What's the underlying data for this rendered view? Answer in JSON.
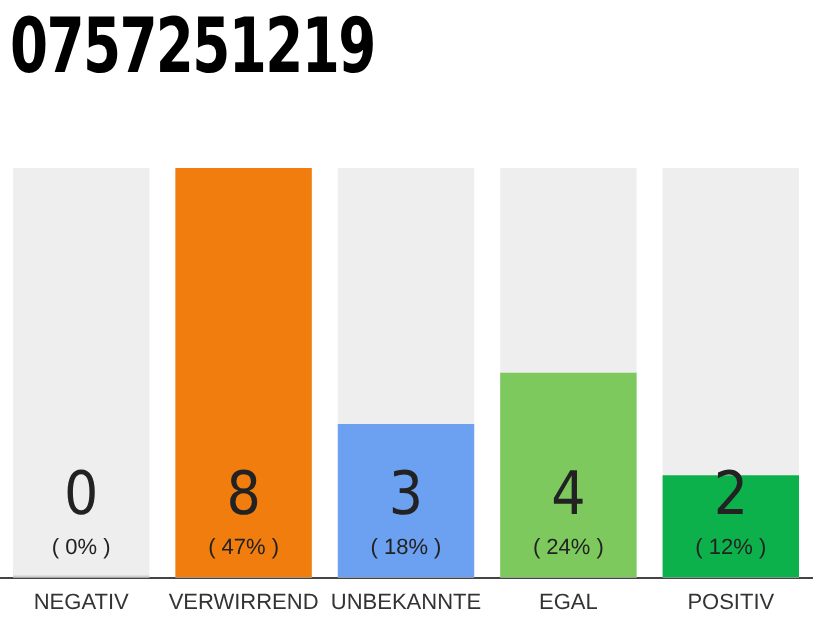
{
  "chart_data": {
    "type": "bar",
    "title": "0757251219",
    "categories": [
      "NEGATIV",
      "VERWIRREND",
      "UNBEKANNTE",
      "EGAL",
      "POSITIV"
    ],
    "values": [
      0,
      8,
      3,
      4,
      2
    ],
    "colors": [
      "#d0d0d0",
      "#f07d0e",
      "#6ca0f0",
      "#7dc95e",
      "#0db14b"
    ],
    "ylim": [
      0,
      8
    ],
    "data_labels": true,
    "grid": false,
    "legend": false,
    "annotations": [
      "( 0% )",
      "( 47% )",
      "( 18% )",
      "( 24% )",
      "( 12% )"
    ]
  }
}
